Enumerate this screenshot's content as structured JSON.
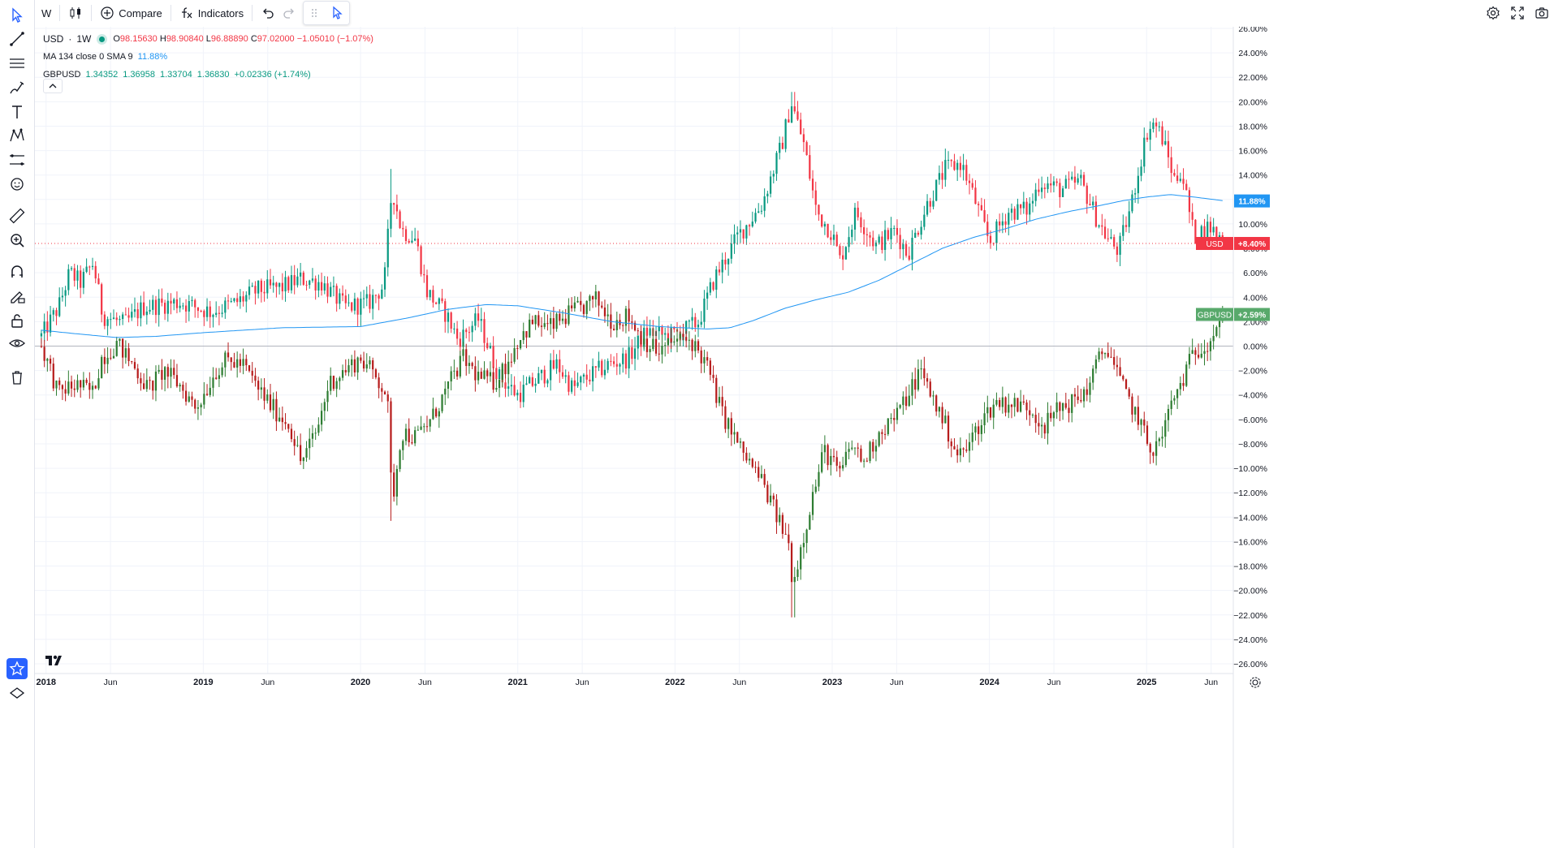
{
  "toolbar": {
    "interval": "W",
    "compare_label": "Compare",
    "indicators_label": "Indicators"
  },
  "legend": {
    "symbol": "USD",
    "separator": "·",
    "interval": "1W",
    "o_label": "O",
    "o_value": "98.15630",
    "h_label": "H",
    "h_value": "98.90840",
    "l_label": "L",
    "l_value": "96.88890",
    "c_label": "C",
    "c_value": "97.02000",
    "change": "−1.05010 (−1.07%)",
    "ma_label": "MA 134 close 0 SMA 9",
    "ma_value": "11.88%",
    "compare_symbol": "GBPUSD",
    "compare_open": "1.34352",
    "compare_high": "1.36958",
    "compare_low": "1.33704",
    "compare_close": "1.36830",
    "compare_change": "+0.02336 (+1.74%)"
  },
  "colors": {
    "up": "#089981",
    "down": "#f23645",
    "ma": "#2196f3",
    "gbp_up": "#2e7d32",
    "gbp_down": "#b71c1c",
    "usd_badge": "#f23645",
    "ma_badge": "#2196f3",
    "gbp_badge": "#58a96b"
  },
  "icons": {
    "left_toolbar": [
      "cursor-icon",
      "trend-line-icon",
      "horizontal-lines-icon",
      "brush-icon",
      "text-icon",
      "pattern-icon",
      "prediction-icon",
      "emoji-icon",
      "ruler-icon",
      "zoom-in-icon",
      "magnet-icon",
      "lock-pencil-icon",
      "unlock-icon",
      "eye-icon",
      "trash-icon",
      "star-icon",
      "layers-icon"
    ],
    "top_right": [
      "settings-icon",
      "fullscreen-icon",
      "camera-icon"
    ]
  },
  "chart_data": {
    "type": "candlestick",
    "y_axis_unit": "%",
    "y_ticks": [
      "26.00%",
      "24.00%",
      "22.00%",
      "20.00%",
      "18.00%",
      "16.00%",
      "14.00%",
      "12.00%",
      "10.00%",
      "8.00%",
      "6.00%",
      "4.00%",
      "2.00%",
      "0.00%",
      "−2.00%",
      "−4.00%",
      "−6.00%",
      "−8.00%",
      "−10.00%",
      "−12.00%",
      "−14.00%",
      "−16.00%",
      "−18.00%",
      "−20.00%",
      "−22.00%",
      "−24.00%",
      "−26.00%"
    ],
    "ylim": [
      -26,
      26
    ],
    "x_ticks": [
      "2018",
      "Jun",
      "2019",
      "Jun",
      "2020",
      "Jun",
      "2021",
      "Jun",
      "2022",
      "Jun",
      "2023",
      "Jun",
      "2024",
      "Jun",
      "2025",
      "Jun"
    ],
    "x_tick_years": [
      2018.0,
      2018.41,
      2019.0,
      2019.41,
      2020.0,
      2020.41,
      2021.0,
      2021.41,
      2022.0,
      2022.41,
      2023.0,
      2023.41,
      2024.0,
      2024.41,
      2025.0,
      2025.41
    ],
    "xlim": [
      2017.96,
      2025.52
    ],
    "series": [
      {
        "name": "USD",
        "badge": "+8.40%",
        "last": 8.4,
        "anchors": [
          [
            2017.97,
            0.8
          ],
          [
            2018.08,
            3.2
          ],
          [
            2018.15,
            6.0
          ],
          [
            2018.22,
            5.2
          ],
          [
            2018.3,
            6.8
          ],
          [
            2018.36,
            2.5
          ],
          [
            2018.5,
            1.8
          ],
          [
            2018.62,
            3.2
          ],
          [
            2018.85,
            3.6
          ],
          [
            2019.05,
            2.8
          ],
          [
            2019.2,
            3.5
          ],
          [
            2019.35,
            4.6
          ],
          [
            2019.5,
            4.8
          ],
          [
            2019.62,
            5.5
          ],
          [
            2019.75,
            5.2
          ],
          [
            2019.9,
            3.2
          ],
          [
            2020.05,
            3.5
          ],
          [
            2020.15,
            5.0
          ],
          [
            2020.2,
            13.0
          ],
          [
            2020.26,
            9.5
          ],
          [
            2020.35,
            8.8
          ],
          [
            2020.42,
            4.5
          ],
          [
            2020.55,
            2.5
          ],
          [
            2020.62,
            0.5
          ],
          [
            2020.75,
            2.2
          ],
          [
            2020.88,
            -2.5
          ],
          [
            2021.0,
            -4.0
          ],
          [
            2021.12,
            -2.8
          ],
          [
            2021.25,
            -1.5
          ],
          [
            2021.35,
            -3.5
          ],
          [
            2021.45,
            -2.5
          ],
          [
            2021.58,
            -1.5
          ],
          [
            2021.7,
            -1.0
          ],
          [
            2021.82,
            1.2
          ],
          [
            2021.95,
            0.8
          ],
          [
            2022.05,
            1.2
          ],
          [
            2022.15,
            2.0
          ],
          [
            2022.25,
            5.5
          ],
          [
            2022.4,
            9.0
          ],
          [
            2022.55,
            11.5
          ],
          [
            2022.68,
            16.5
          ],
          [
            2022.74,
            20.0
          ],
          [
            2022.82,
            16.5
          ],
          [
            2022.9,
            11.0
          ],
          [
            2023.0,
            9.2
          ],
          [
            2023.05,
            7.0
          ],
          [
            2023.15,
            11.0
          ],
          [
            2023.28,
            8.2
          ],
          [
            2023.4,
            9.5
          ],
          [
            2023.48,
            7.5
          ],
          [
            2023.6,
            11.5
          ],
          [
            2023.72,
            14.5
          ],
          [
            2023.82,
            15.0
          ],
          [
            2023.92,
            11.5
          ],
          [
            2024.0,
            8.5
          ],
          [
            2024.12,
            11.0
          ],
          [
            2024.25,
            11.2
          ],
          [
            2024.32,
            13.5
          ],
          [
            2024.45,
            12.8
          ],
          [
            2024.58,
            13.5
          ],
          [
            2024.68,
            10.5
          ],
          [
            2024.75,
            8.8
          ],
          [
            2024.82,
            7.8
          ],
          [
            2024.9,
            11.5
          ],
          [
            2025.0,
            17.5
          ],
          [
            2025.05,
            18.3
          ],
          [
            2025.1,
            17.0
          ],
          [
            2025.18,
            13.5
          ],
          [
            2025.22,
            14.5
          ],
          [
            2025.3,
            9.0
          ],
          [
            2025.4,
            9.8
          ],
          [
            2025.5,
            8.4
          ]
        ]
      },
      {
        "name": "MA 134 close 0 SMA 9",
        "badge": "11.88%",
        "last": 11.88,
        "anchors": [
          [
            2017.97,
            1.3
          ],
          [
            2018.2,
            1.0
          ],
          [
            2018.45,
            0.7
          ],
          [
            2018.7,
            0.8
          ],
          [
            2019.0,
            1.1
          ],
          [
            2019.5,
            1.5
          ],
          [
            2020.0,
            1.6
          ],
          [
            2020.3,
            2.3
          ],
          [
            2020.55,
            3.0
          ],
          [
            2020.8,
            3.4
          ],
          [
            2021.0,
            3.3
          ],
          [
            2021.3,
            2.7
          ],
          [
            2021.6,
            2.0
          ],
          [
            2021.9,
            1.6
          ],
          [
            2022.2,
            1.4
          ],
          [
            2022.35,
            1.5
          ],
          [
            2022.5,
            2.1
          ],
          [
            2022.7,
            3.1
          ],
          [
            2022.9,
            3.8
          ],
          [
            2023.1,
            4.4
          ],
          [
            2023.3,
            5.4
          ],
          [
            2023.5,
            6.7
          ],
          [
            2023.7,
            8.0
          ],
          [
            2023.9,
            8.9
          ],
          [
            2024.1,
            9.6
          ],
          [
            2024.3,
            10.4
          ],
          [
            2024.5,
            11.0
          ],
          [
            2024.7,
            11.5
          ],
          [
            2024.85,
            11.9
          ],
          [
            2025.0,
            12.2
          ],
          [
            2025.15,
            12.4
          ],
          [
            2025.3,
            12.2
          ],
          [
            2025.5,
            11.88
          ]
        ]
      },
      {
        "name": "GBPUSD",
        "badge": "+2.59%",
        "last": 2.59,
        "anchors": [
          [
            2017.97,
            0.0
          ],
          [
            2018.03,
            -2.0
          ],
          [
            2018.08,
            -4.0
          ],
          [
            2018.12,
            -3.5
          ],
          [
            2018.2,
            -3.2
          ],
          [
            2018.3,
            -3.8
          ],
          [
            2018.35,
            -1.0
          ],
          [
            2018.45,
            0.2
          ],
          [
            2018.55,
            -1.5
          ],
          [
            2018.65,
            -3.5
          ],
          [
            2018.75,
            -2.0
          ],
          [
            2018.85,
            -3.2
          ],
          [
            2018.95,
            -5.0
          ],
          [
            2019.0,
            -4.0
          ],
          [
            2019.08,
            -2.0
          ],
          [
            2019.15,
            -1.2
          ],
          [
            2019.25,
            -1.5
          ],
          [
            2019.35,
            -3.5
          ],
          [
            2019.45,
            -5.2
          ],
          [
            2019.55,
            -6.5
          ],
          [
            2019.62,
            -9.5
          ],
          [
            2019.72,
            -7.0
          ],
          [
            2019.8,
            -3.0
          ],
          [
            2019.9,
            -2.0
          ],
          [
            2020.0,
            -1.0
          ],
          [
            2020.1,
            -2.5
          ],
          [
            2020.17,
            -4.0
          ],
          [
            2020.2,
            -13.0
          ],
          [
            2020.26,
            -7.0
          ],
          [
            2020.35,
            -7.5
          ],
          [
            2020.45,
            -6.0
          ],
          [
            2020.55,
            -3.5
          ],
          [
            2020.65,
            -1.0
          ],
          [
            2020.75,
            -2.5
          ],
          [
            2020.85,
            -3.0
          ],
          [
            2020.95,
            -1.0
          ],
          [
            2021.0,
            0.5
          ],
          [
            2021.1,
            2.0
          ],
          [
            2021.2,
            1.5
          ],
          [
            2021.35,
            2.8
          ],
          [
            2021.42,
            3.2
          ],
          [
            2021.5,
            3.8
          ],
          [
            2021.6,
            2.0
          ],
          [
            2021.7,
            2.5
          ],
          [
            2021.8,
            0.5
          ],
          [
            2021.9,
            -0.5
          ],
          [
            2022.0,
            0.5
          ],
          [
            2022.1,
            0.5
          ],
          [
            2022.2,
            -1.5
          ],
          [
            2022.3,
            -5.5
          ],
          [
            2022.42,
            -8.5
          ],
          [
            2022.55,
            -11.0
          ],
          [
            2022.65,
            -14.0
          ],
          [
            2022.72,
            -16.0
          ],
          [
            2022.75,
            -19.5
          ],
          [
            2022.8,
            -16.5
          ],
          [
            2022.88,
            -12.0
          ],
          [
            2022.95,
            -8.5
          ],
          [
            2023.05,
            -10.5
          ],
          [
            2023.12,
            -8.0
          ],
          [
            2023.2,
            -9.5
          ],
          [
            2023.3,
            -7.0
          ],
          [
            2023.42,
            -5.5
          ],
          [
            2023.5,
            -3.5
          ],
          [
            2023.56,
            -2.0
          ],
          [
            2023.65,
            -4.5
          ],
          [
            2023.72,
            -6.5
          ],
          [
            2023.8,
            -9.0
          ],
          [
            2023.85,
            -8.5
          ],
          [
            2023.95,
            -6.0
          ],
          [
            2024.05,
            -4.5
          ],
          [
            2024.15,
            -4.8
          ],
          [
            2024.25,
            -5.0
          ],
          [
            2024.35,
            -6.5
          ],
          [
            2024.45,
            -5.0
          ],
          [
            2024.55,
            -4.5
          ],
          [
            2024.62,
            -3.5
          ],
          [
            2024.7,
            -1.0
          ],
          [
            2024.75,
            0.0
          ],
          [
            2024.85,
            -3.5
          ],
          [
            2024.95,
            -6.0
          ],
          [
            2025.02,
            -8.5
          ],
          [
            2025.08,
            -8.0
          ],
          [
            2025.15,
            -5.0
          ],
          [
            2025.22,
            -3.0
          ],
          [
            2025.3,
            -0.5
          ],
          [
            2025.4,
            0.5
          ],
          [
            2025.45,
            2.0
          ],
          [
            2025.5,
            2.59
          ]
        ]
      }
    ],
    "extremes": [
      {
        "series": "USD",
        "x": 2020.2,
        "low": 12.0,
        "high": 14.5
      },
      {
        "series": "USD",
        "x": 2022.75,
        "low": 19.0,
        "high": 20.8
      },
      {
        "series": "GBPUSD",
        "x": 2020.2,
        "low": -14.3,
        "high": -12.0
      },
      {
        "series": "GBPUSD",
        "x": 2022.75,
        "low": -22.2,
        "high": -18.5
      }
    ]
  }
}
